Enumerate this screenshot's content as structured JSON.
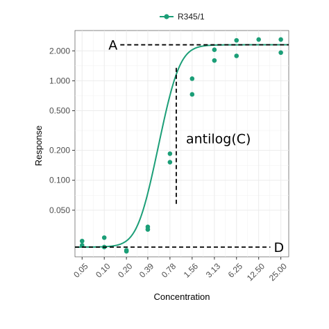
{
  "chart_data": {
    "type": "scatter",
    "x_scale": "log",
    "y_scale": "log",
    "xlabel": "Concentration",
    "ylabel": "Response",
    "x_tick_labels": [
      "0.05",
      "0.10",
      "0.20",
      "0.39",
      "0.78",
      "1.56",
      "3.13",
      "6.25",
      "12.50",
      "25.00"
    ],
    "x_ticks": [
      0.05,
      0.1,
      0.2,
      0.39,
      0.78,
      1.56,
      3.13,
      6.25,
      12.5,
      25.0
    ],
    "y_tick_labels": [
      "0.050",
      "0.100",
      "0.200",
      "0.500",
      "1.000",
      "2.000"
    ],
    "y_ticks": [
      0.05,
      0.1,
      0.2,
      0.5,
      1.0,
      2.0
    ],
    "xlim": [
      0.04,
      32
    ],
    "ylim": [
      0.017,
      3.2
    ],
    "grid": true,
    "legend_position": "top",
    "series": [
      {
        "name": "R345/1",
        "color": "#1b9e77",
        "points": [
          {
            "x": 0.05,
            "y": 0.0245
          },
          {
            "x": 0.05,
            "y": 0.0222
          },
          {
            "x": 0.1,
            "y": 0.0265
          },
          {
            "x": 0.1,
            "y": 0.0213
          },
          {
            "x": 0.2,
            "y": 0.0198
          },
          {
            "x": 0.2,
            "y": 0.0193
          },
          {
            "x": 0.39,
            "y": 0.034
          },
          {
            "x": 0.39,
            "y": 0.032
          },
          {
            "x": 0.78,
            "y": 0.185
          },
          {
            "x": 0.78,
            "y": 0.152
          },
          {
            "x": 1.56,
            "y": 1.05
          },
          {
            "x": 1.56,
            "y": 0.73
          },
          {
            "x": 3.13,
            "y": 2.05
          },
          {
            "x": 3.13,
            "y": 1.6
          },
          {
            "x": 6.25,
            "y": 2.55
          },
          {
            "x": 6.25,
            "y": 1.78
          },
          {
            "x": 12.5,
            "y": 2.6
          },
          {
            "x": 25.0,
            "y": 2.6
          },
          {
            "x": 25.0,
            "y": 1.92
          }
        ],
        "fit": {
          "model": "4PL",
          "A": 2.3,
          "D": 0.0213,
          "C": 0.95,
          "B": 4.2
        }
      }
    ],
    "annotations": [
      {
        "label": "A",
        "type": "hline",
        "y": 2.3,
        "x_from": 0.165,
        "x_to": 32
      },
      {
        "label": "D",
        "type": "hline",
        "y": 0.0213,
        "x_from": 0.04,
        "x_to": 18
      },
      {
        "label": "antilog(C)",
        "type": "vline",
        "x": 0.95,
        "y_from": 0.057,
        "y_to": 1.35
      }
    ]
  }
}
